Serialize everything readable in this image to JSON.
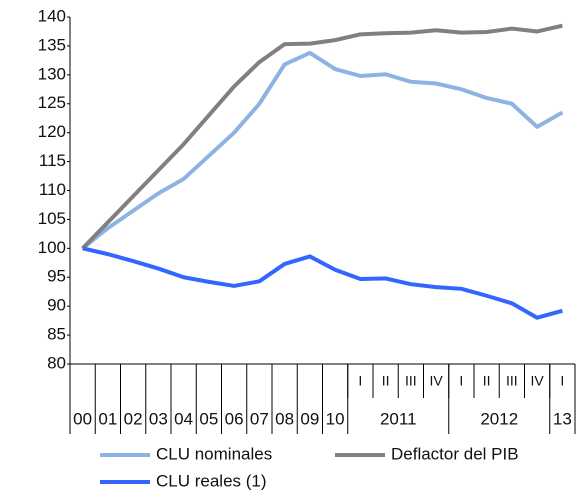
{
  "chart_data": {
    "type": "line",
    "categories": [
      null,
      null,
      null,
      null,
      null,
      null,
      null,
      null,
      null,
      null,
      null,
      "I",
      "II",
      "III",
      "IV",
      "I",
      "II",
      "III",
      "IV",
      "I"
    ],
    "category_groups": [
      {
        "label": "00",
        "count": 1
      },
      {
        "label": "01",
        "count": 1
      },
      {
        "label": "02",
        "count": 1
      },
      {
        "label": "03",
        "count": 1
      },
      {
        "label": "04",
        "count": 1
      },
      {
        "label": "05",
        "count": 1
      },
      {
        "label": "06",
        "count": 1
      },
      {
        "label": "07",
        "count": 1
      },
      {
        "label": "08",
        "count": 1
      },
      {
        "label": "09",
        "count": 1
      },
      {
        "label": "10",
        "count": 1
      },
      {
        "label": "2011",
        "count": 4
      },
      {
        "label": "2012",
        "count": 4
      },
      {
        "label": "13",
        "count": 1
      }
    ],
    "series": [
      {
        "name": "CLU nominales",
        "color": "#8db3e2",
        "values": [
          100,
          103.5,
          106.5,
          109.5,
          112,
          116,
          120,
          125,
          131.8,
          133.8,
          131,
          129.8,
          130.1,
          128.8,
          128.5,
          127.5,
          126,
          125,
          121,
          123.5
        ]
      },
      {
        "name": "Deflactor del PIB",
        "color": "#808080",
        "values": [
          100,
          104.5,
          109,
          113.5,
          118,
          123,
          128,
          132.2,
          135.3,
          135.4,
          136,
          137,
          137.2,
          137.3,
          137.7,
          137.3,
          137.4,
          138,
          137.5,
          138.5
        ]
      },
      {
        "name": "CLU reales (1)",
        "color": "#3366ff",
        "values": [
          100,
          99,
          97.8,
          96.5,
          95,
          94.2,
          93.5,
          94.3,
          97.3,
          98.6,
          96.3,
          94.7,
          94.8,
          93.8,
          93.3,
          93,
          91.8,
          90.5,
          88,
          89.2
        ]
      }
    ],
    "ylim": [
      80,
      140
    ],
    "yticks": [
      80,
      85,
      90,
      95,
      100,
      105,
      110,
      115,
      120,
      125,
      130,
      135,
      140
    ],
    "grid": false
  }
}
